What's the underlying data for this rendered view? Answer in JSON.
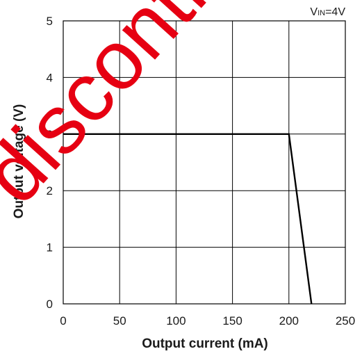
{
  "chart_data": {
    "type": "line",
    "xlabel": "Output current (mA)",
    "ylabel": "Output voltage (V)",
    "xlim": [
      0,
      250
    ],
    "ylim": [
      0,
      5
    ],
    "x_ticks": [
      0,
      50,
      100,
      150,
      200,
      250
    ],
    "y_ticks": [
      0,
      1,
      2,
      3,
      4,
      5
    ],
    "grid": true,
    "condition": {
      "main": "V",
      "sub": "IN",
      "rest": "=4V"
    },
    "series": [
      {
        "x": [
          0,
          200,
          220
        ],
        "y": [
          3,
          3,
          0
        ],
        "color": "#000000"
      }
    ]
  },
  "watermark": {
    "text": "discontinued",
    "color": "#e60012"
  }
}
